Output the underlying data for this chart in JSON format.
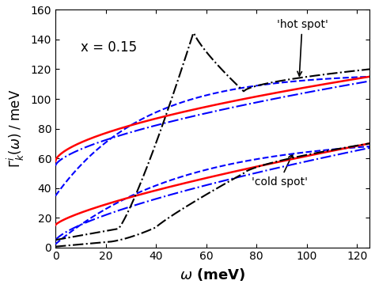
{
  "title": "",
  "xlabel": "$\\omega$ (meV)",
  "ylabel": "$\\Gamma^i_k(\\omega)$ / meV",
  "xlim": [
    0,
    125
  ],
  "ylim": [
    0,
    160
  ],
  "xticks": [
    0,
    20,
    40,
    60,
    80,
    100,
    120
  ],
  "yticks": [
    0,
    20,
    40,
    60,
    80,
    100,
    120,
    140,
    160
  ],
  "annotation_x": "x = 0.15",
  "hot_spot_label": "'hot spot'",
  "cold_spot_label": "'cold spot'",
  "background_color": "#ffffff",
  "plot_bg_color": "#ffffff"
}
